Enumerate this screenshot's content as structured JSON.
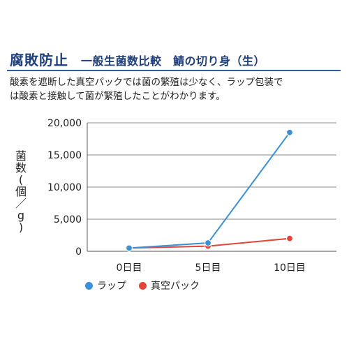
{
  "header": {
    "title": "腐敗防止",
    "subtitle": "一般生菌数比較　鯖の切り身（生）"
  },
  "description": {
    "line1": "酸素を遮断した真空パックでは菌の繁殖は少なく、ラップ包装で",
    "line2": "は酸素と接触して菌が繁殖したことがわかります。"
  },
  "colors": {
    "title": "#1f3f7a",
    "rule": "#2c5fa8",
    "wrap": "#3a8fd6",
    "vacuum": "#e0463a"
  },
  "chart_data": {
    "type": "line",
    "title": "",
    "xlabel": "",
    "ylabel": "菌数(個/g)",
    "ylabel_chars": [
      "菌",
      "数",
      "(",
      "個",
      "／",
      "g",
      ")"
    ],
    "categories": [
      "0日目",
      "5日目",
      "10日目"
    ],
    "ylim": [
      0,
      20000
    ],
    "yticks": [
      0,
      5000,
      10000,
      15000,
      20000
    ],
    "ytick_labels": [
      "0",
      "5,000",
      "10,000",
      "15,000",
      "20,000"
    ],
    "grid": true,
    "legend_position": "bottom-left",
    "series": [
      {
        "name": "ラップ",
        "color": "#3a8fd6",
        "values": [
          500,
          1300,
          18500
        ]
      },
      {
        "name": "真空パック",
        "color": "#e0463a",
        "values": [
          500,
          800,
          2000
        ]
      }
    ]
  }
}
